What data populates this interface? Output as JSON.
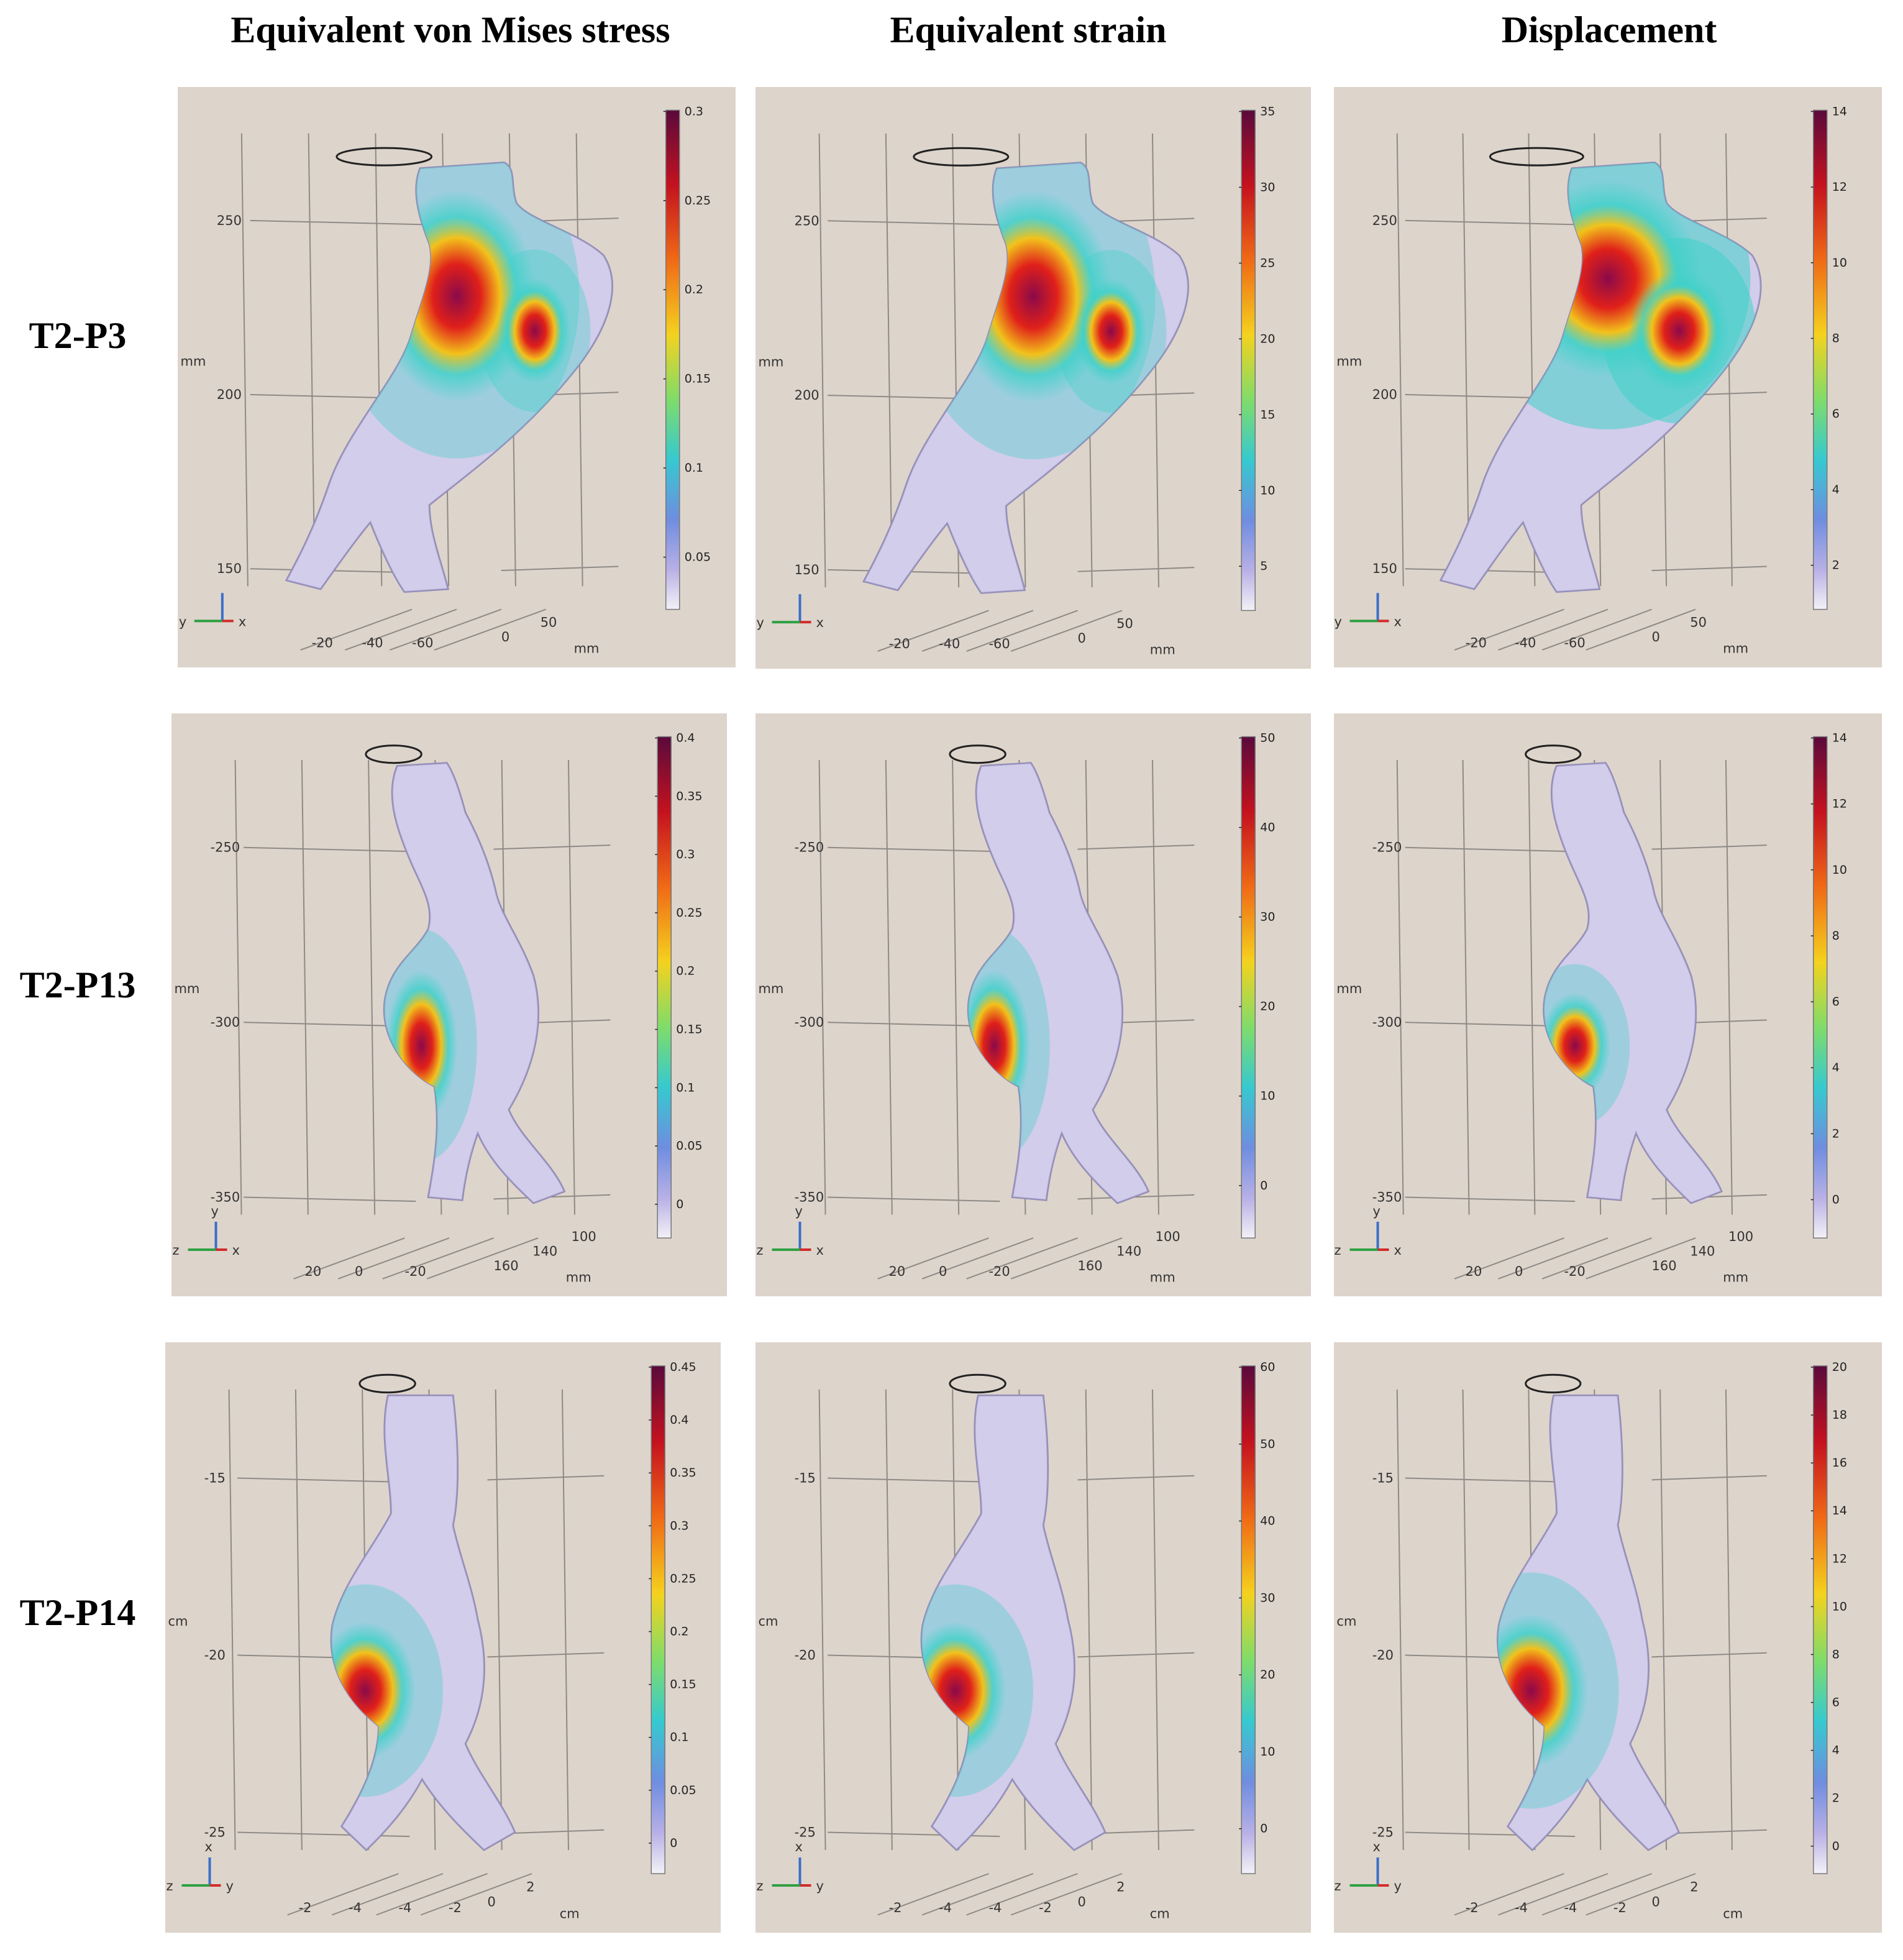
{
  "columns": [
    {
      "title": "Equivalent von Mises stress"
    },
    {
      "title": "Equivalent strain"
    },
    {
      "title": "Displacement"
    }
  ],
  "rows": [
    {
      "label": "T2-P3",
      "axis_unit": "mm",
      "vert_ticks": [
        "250",
        "200",
        "150"
      ],
      "horiz_ticks_a": [
        "-20",
        "-40",
        "-60"
      ],
      "horiz_ticks_b": [
        "0",
        "50"
      ],
      "horiz_unit_b": "mm",
      "triad": [
        "y",
        "x"
      ],
      "colorbars": [
        {
          "ticks": [
            "0.3",
            "0.25",
            "0.2",
            "0.15",
            "0.1",
            "0.05"
          ]
        },
        {
          "ticks": [
            "35",
            "30",
            "25",
            "20",
            "15",
            "10",
            "5"
          ]
        },
        {
          "ticks": [
            "14",
            "12",
            "10",
            "8",
            "6",
            "4",
            "2"
          ]
        }
      ]
    },
    {
      "label": "T2-P13",
      "axis_unit": "mm",
      "vert_ticks": [
        "-250",
        "-300",
        "-350"
      ],
      "horiz_ticks_a": [
        "20",
        "0",
        "-20"
      ],
      "horiz_ticks_b": [
        "160",
        "140",
        "100"
      ],
      "horiz_unit_b": "mm",
      "triad": [
        "z",
        "x",
        "y"
      ],
      "colorbars": [
        {
          "ticks": [
            "0.4",
            "0.35",
            "0.3",
            "0.25",
            "0.2",
            "0.15",
            "0.1",
            "0.05",
            "0"
          ]
        },
        {
          "ticks": [
            "50",
            "40",
            "30",
            "20",
            "10",
            "0"
          ]
        },
        {
          "ticks": [
            "14",
            "12",
            "10",
            "8",
            "6",
            "4",
            "2",
            "0"
          ]
        }
      ]
    },
    {
      "label": "T2-P14",
      "axis_unit": "cm",
      "vert_ticks": [
        "-15",
        "-20",
        "-25"
      ],
      "horiz_ticks_a": [
        "-2",
        "-4",
        "-4",
        "-2"
      ],
      "horiz_ticks_b": [
        "0",
        "2"
      ],
      "horiz_unit_b": "cm",
      "triad": [
        "z",
        "y",
        "x"
      ],
      "colorbars": [
        {
          "ticks": [
            "0.45",
            "0.4",
            "0.35",
            "0.3",
            "0.25",
            "0.2",
            "0.15",
            "0.1",
            "0.05",
            "0"
          ]
        },
        {
          "ticks": [
            "60",
            "50",
            "40",
            "30",
            "20",
            "10",
            "0"
          ]
        },
        {
          "ticks": [
            "20",
            "18",
            "16",
            "14",
            "12",
            "10",
            "8",
            "6",
            "4",
            "2",
            "0"
          ]
        }
      ]
    }
  ],
  "colors": {
    "panel_bg": "#ddd4cb",
    "surface_base": "#c9c3e6",
    "hot": "#8b0a4a",
    "warm": "#e0201a",
    "mid": "#f2c21b",
    "cool": "#3fd1c9"
  }
}
